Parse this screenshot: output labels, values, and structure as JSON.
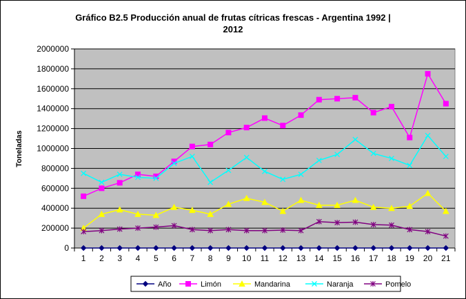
{
  "chart_data": {
    "type": "line",
    "title_line1": "Gráfico B2.5 Producción anual de frutas cítricas frescas - Argentina 1992  |",
    "title_line2": "2012",
    "ylabel": "Toneladas",
    "xlabel": "",
    "ylim": [
      0,
      2000000
    ],
    "ytick_step": 200000,
    "y_ticks": [
      "0",
      "200000",
      "400000",
      "600000",
      "800000",
      "1000000",
      "1200000",
      "1400000",
      "1600000",
      "1800000",
      "2000000"
    ],
    "categories": [
      "1",
      "2",
      "3",
      "4",
      "5",
      "6",
      "7",
      "8",
      "9",
      "10",
      "11",
      "12",
      "13",
      "14",
      "15",
      "16",
      "17",
      "18",
      "19",
      "20",
      "21"
    ],
    "grid": true,
    "plot_background": "#c0c0c0",
    "legend_position": "bottom",
    "series": [
      {
        "name": "Año",
        "color": "#000080",
        "marker": "diamond",
        "values": [
          0,
          0,
          0,
          0,
          0,
          0,
          0,
          0,
          0,
          0,
          0,
          0,
          0,
          0,
          0,
          0,
          0,
          0,
          0,
          0,
          0
        ]
      },
      {
        "name": "Limón",
        "color": "#ff00ff",
        "marker": "square",
        "values": [
          520000,
          600000,
          655000,
          740000,
          720000,
          870000,
          1020000,
          1040000,
          1160000,
          1210000,
          1305000,
          1230000,
          1335000,
          1490000,
          1500000,
          1510000,
          1360000,
          1420000,
          1110000,
          1750000,
          1450000
        ]
      },
      {
        "name": "Mandarina",
        "color": "#ffff00",
        "marker": "triangle",
        "values": [
          200000,
          340000,
          385000,
          340000,
          330000,
          410000,
          380000,
          340000,
          440000,
          500000,
          460000,
          370000,
          480000,
          430000,
          430000,
          480000,
          410000,
          400000,
          420000,
          550000,
          370000
        ]
      },
      {
        "name": "Naranja",
        "color": "#00ffff",
        "marker": "x",
        "values": [
          750000,
          660000,
          740000,
          710000,
          700000,
          850000,
          920000,
          660000,
          780000,
          910000,
          770000,
          690000,
          740000,
          880000,
          940000,
          1090000,
          950000,
          900000,
          830000,
          1130000,
          920000
        ]
      },
      {
        "name": "Pomelo",
        "color": "#800080",
        "marker": "asterisk",
        "values": [
          165000,
          175000,
          190000,
          200000,
          210000,
          225000,
          185000,
          175000,
          185000,
          175000,
          175000,
          180000,
          175000,
          265000,
          255000,
          260000,
          235000,
          230000,
          185000,
          165000,
          120000
        ]
      }
    ]
  }
}
